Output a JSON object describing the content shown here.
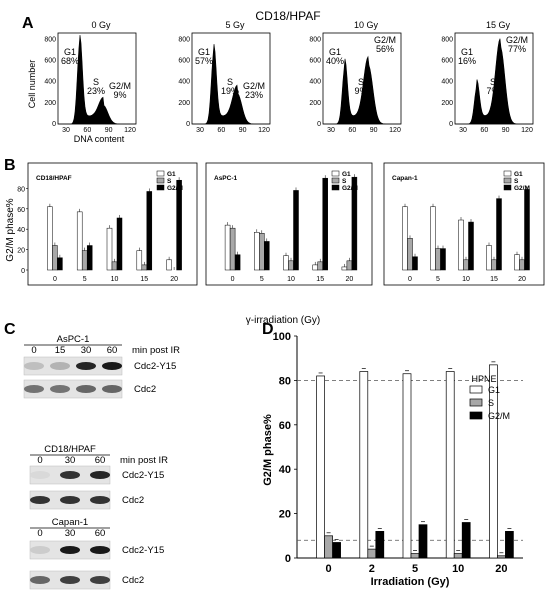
{
  "title": "CD18/HPAF",
  "panelA": {
    "letter": "A",
    "ylabel": "Cell number",
    "xlabel": "DNA content",
    "hists": [
      {
        "label": "0 Gy",
        "g1": "G1\n68%",
        "s": "S\n23%",
        "g2m": "G2/M\n9%",
        "g1_frac": 0.68,
        "g2_frac": 0.09
      },
      {
        "label": "5 Gy",
        "g1": "G1\n57%",
        "s": "S\n19%",
        "g2m": "G2/M\n23%",
        "g1_frac": 0.57,
        "g2_frac": 0.23
      },
      {
        "label": "10 Gy",
        "g1": "G1\n40%",
        "s": "S\n9%",
        "g2m": "G2/M\n56%",
        "g1_frac": 0.4,
        "g2_frac": 0.56
      },
      {
        "label": "15 Gy",
        "g1": "G1\n16%",
        "s": "S\n7%",
        "g2m": "G2/M\n77%",
        "g1_frac": 0.16,
        "g2_frac": 0.77
      }
    ],
    "yticks": [
      "0",
      "200",
      "400",
      "600",
      "800"
    ],
    "xticks": [
      "30",
      "60",
      "90",
      "120"
    ]
  },
  "panelB": {
    "letter": "B",
    "ylabel": "G2/M phase%",
    "xlabel": "γ-irradiation (Gy)",
    "legend": [
      "G1",
      "S",
      "G2/M"
    ]
  },
  "panelC": {
    "letter": "C",
    "groups": [
      {
        "title": "AsPC-1",
        "times": [
          "0",
          "15",
          "30",
          "60"
        ],
        "caption": "min post IR",
        "bands": [
          "Cdc2-Y15",
          "Cdc2"
        ]
      },
      {
        "title": "CD18/HPAF",
        "times": [
          "0",
          "30",
          "60"
        ],
        "caption": "min post IR",
        "bands": [
          "Cdc2-Y15",
          "Cdc2"
        ]
      },
      {
        "title": "Capan-1",
        "times": [
          "0",
          "30",
          "60"
        ],
        "caption": "",
        "bands": [
          "Cdc2-Y15",
          "Cdc2"
        ]
      }
    ]
  },
  "panelD": {
    "letter": "D",
    "legend_title": "HPNE",
    "legend": [
      "G1",
      "S",
      "G2/M"
    ]
  },
  "colors": {
    "g1": "#ffffff",
    "s": "#a8a8a8",
    "g2m": "#000000"
  },
  "chart_data": [
    {
      "type": "bar",
      "title": "CD18/HPAF",
      "categories": [
        "0",
        "5",
        "10",
        "15",
        "20"
      ],
      "series": [
        {
          "name": "G1",
          "values": [
            62,
            57,
            41,
            19,
            10
          ]
        },
        {
          "name": "S",
          "values": [
            24,
            19,
            8,
            5,
            0
          ]
        },
        {
          "name": "G2/M",
          "values": [
            12,
            24,
            51,
            77,
            88
          ]
        }
      ],
      "xlabel": "γ-irradiation (Gy)",
      "ylabel": "G2/M phase%",
      "ylim": [
        0,
        100
      ],
      "yticks": [
        "0",
        "20",
        "40",
        "60",
        "80"
      ]
    },
    {
      "type": "bar",
      "title": "AsPC-1",
      "categories": [
        "0",
        "5",
        "10",
        "15",
        "20"
      ],
      "series": [
        {
          "name": "G1",
          "values": [
            44,
            37,
            14,
            5,
            3
          ]
        },
        {
          "name": "S",
          "values": [
            41,
            36,
            9,
            8,
            9
          ]
        },
        {
          "name": "G2/M",
          "values": [
            15,
            28,
            78,
            90,
            91
          ]
        }
      ],
      "xlabel": "γ-irradiation (Gy)",
      "ylabel": "G2/M phase%",
      "ylim": [
        0,
        100
      ]
    },
    {
      "type": "bar",
      "title": "Capan-1",
      "categories": [
        "0",
        "5",
        "10",
        "15",
        "20"
      ],
      "series": [
        {
          "name": "G1",
          "values": [
            62,
            62,
            49,
            24,
            15
          ]
        },
        {
          "name": "S",
          "values": [
            31,
            21,
            10,
            10,
            10
          ]
        },
        {
          "name": "G2/M",
          "values": [
            13,
            21,
            47,
            70,
            79
          ]
        }
      ],
      "xlabel": "γ-irradiation (Gy)",
      "ylabel": "G2/M phase%",
      "ylim": [
        0,
        100
      ]
    },
    {
      "type": "bar",
      "title": "HPNE",
      "categories": [
        "0",
        "2",
        "5",
        "10",
        "20"
      ],
      "series": [
        {
          "name": "G1",
          "values": [
            82,
            84,
            83,
            84,
            87
          ]
        },
        {
          "name": "S",
          "values": [
            10,
            4,
            2,
            2,
            1
          ]
        },
        {
          "name": "G2/M",
          "values": [
            7,
            12,
            15,
            16,
            12
          ]
        }
      ],
      "xlabel": "Irradiation (Gy)",
      "ylabel": "G2/M phase%",
      "ylim": [
        0,
        100
      ],
      "yticks": [
        "0",
        "20",
        "40",
        "60",
        "80",
        "100"
      ],
      "reference_lines": [
        80,
        8
      ]
    }
  ]
}
